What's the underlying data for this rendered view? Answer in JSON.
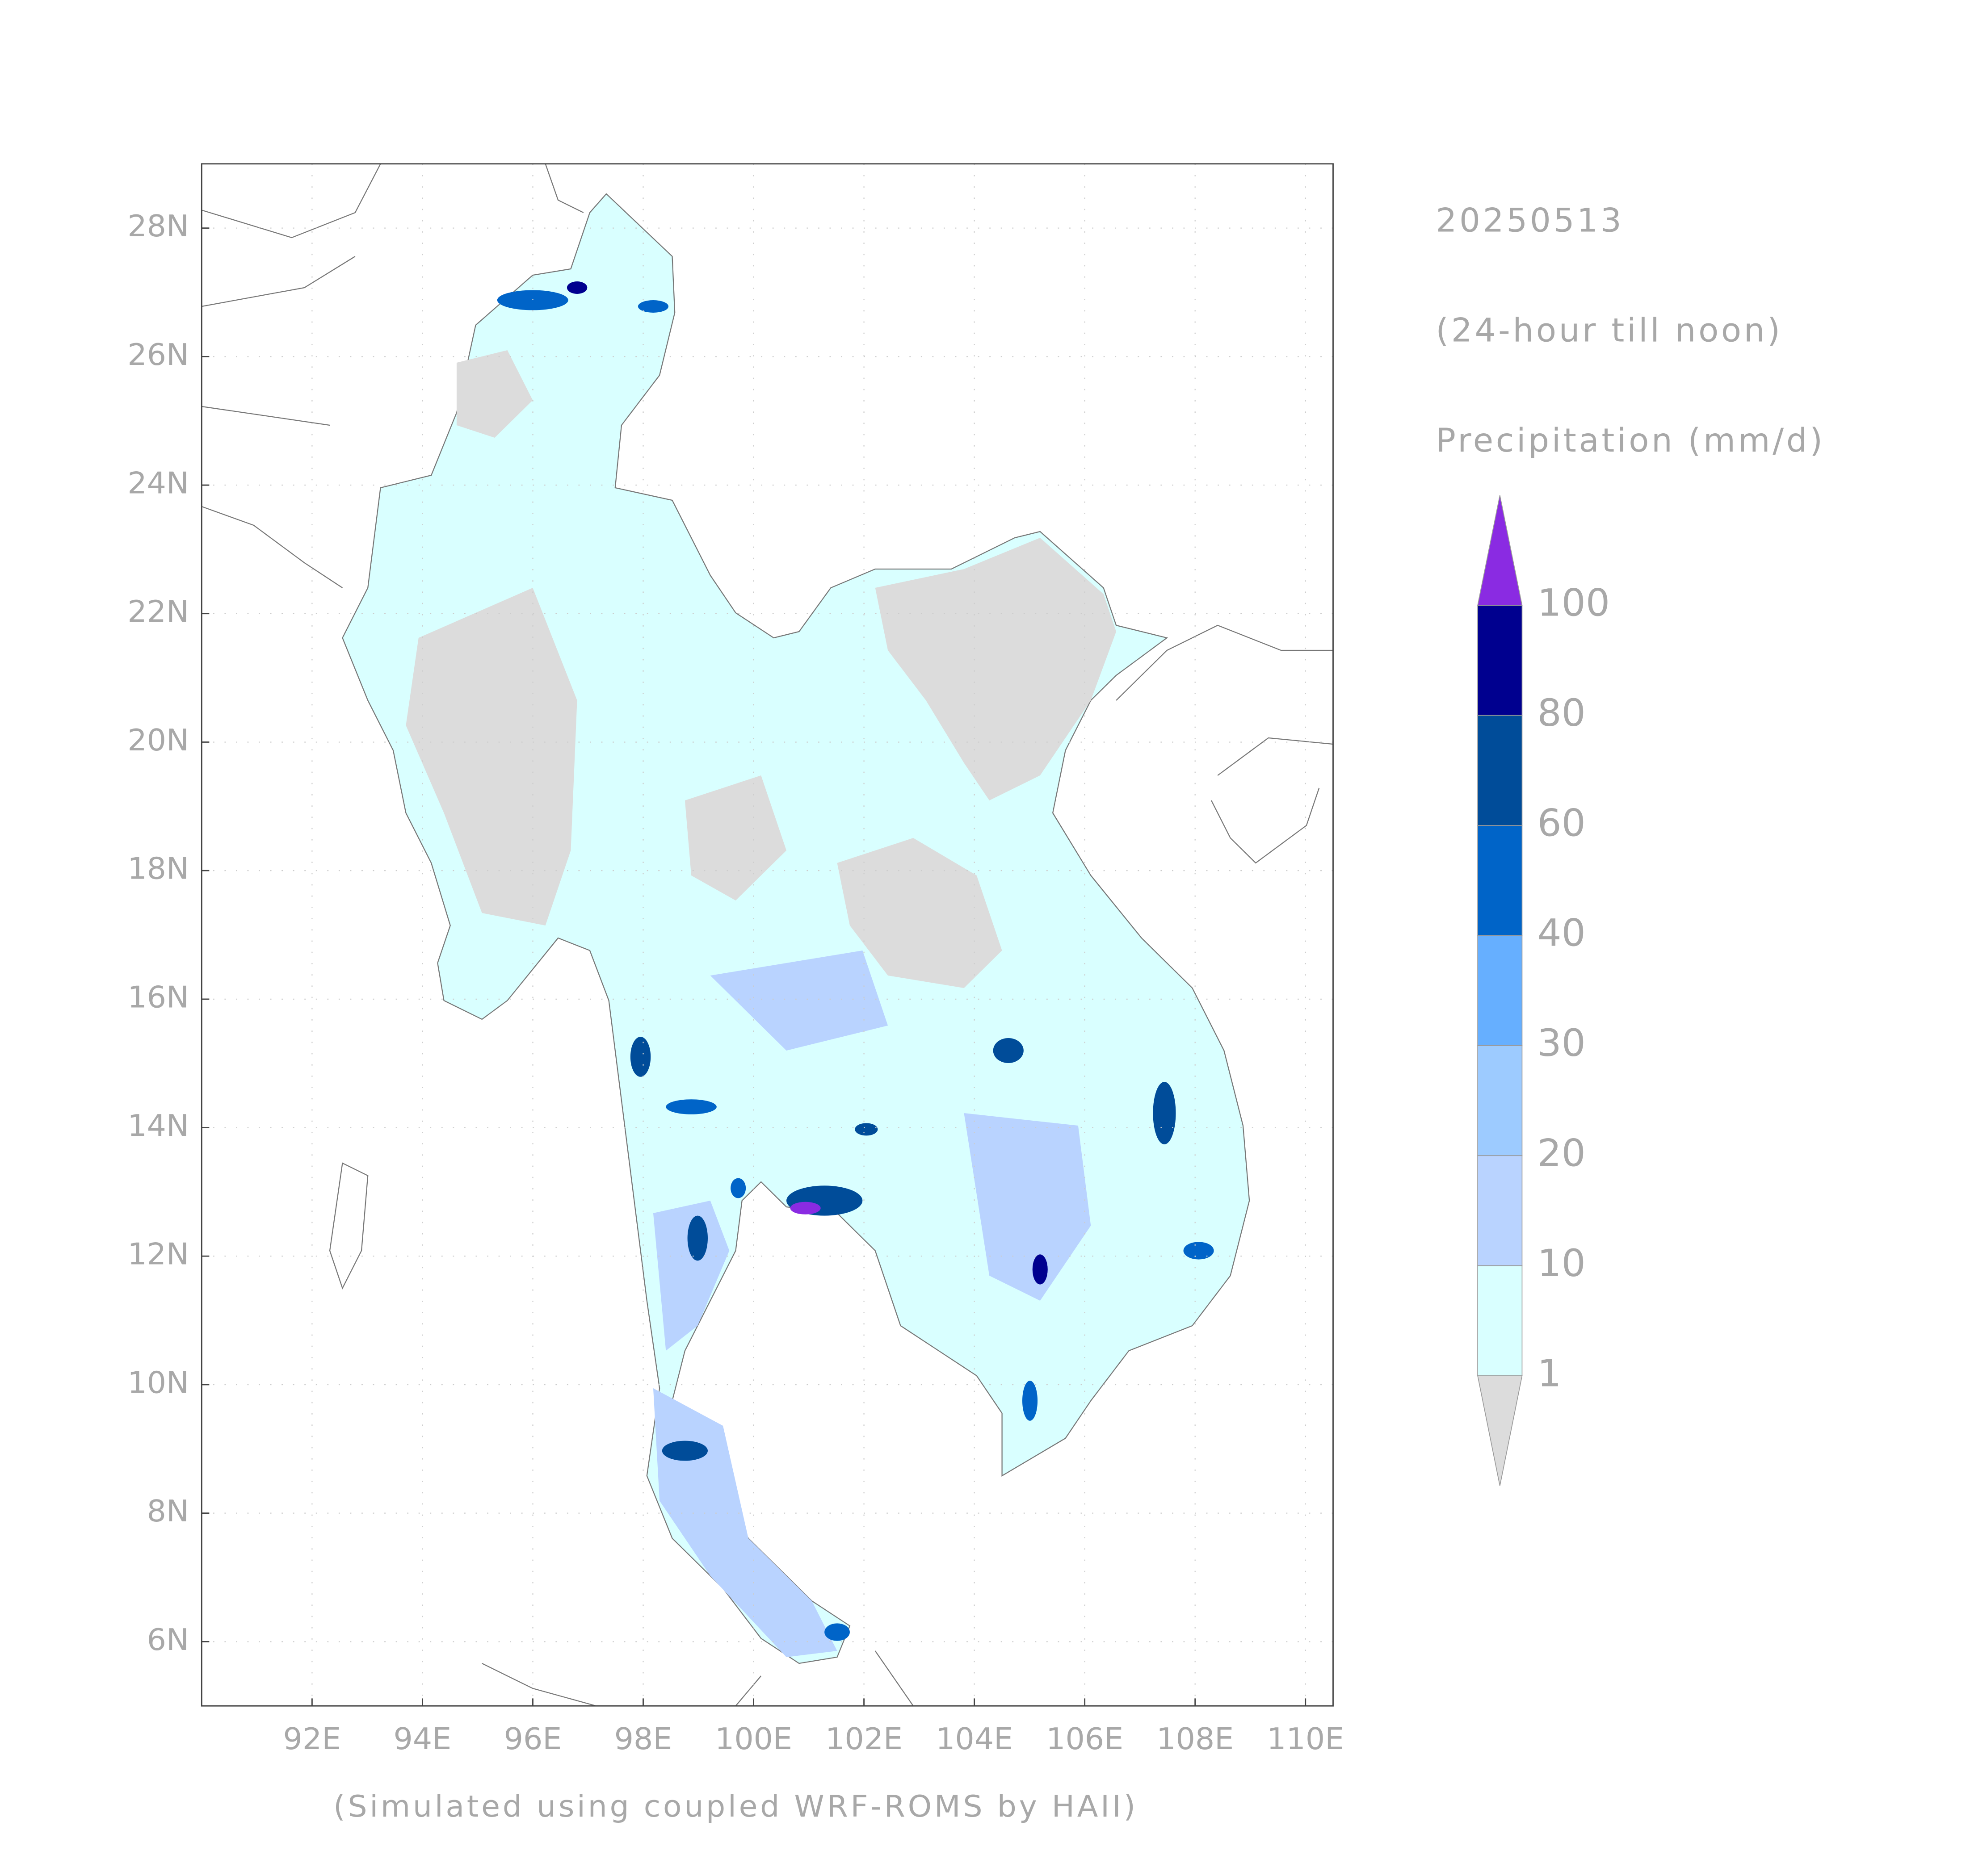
{
  "title": "20250513",
  "subtitle": "(24-hour till noon)",
  "variable": "Precipitation (mm/d)",
  "footer": "(Simulated using coupled WRF-ROMS by HAII)",
  "map": {
    "xlim": [
      90,
      110.5
    ],
    "ylim": [
      5,
      29
    ],
    "grid": true,
    "xticks": [
      {
        "value": 92,
        "label": "92E"
      },
      {
        "value": 94,
        "label": "94E"
      },
      {
        "value": 96,
        "label": "96E"
      },
      {
        "value": 98,
        "label": "98E"
      },
      {
        "value": 100,
        "label": "100E"
      },
      {
        "value": 102,
        "label": "102E"
      },
      {
        "value": 104,
        "label": "104E"
      },
      {
        "value": 106,
        "label": "106E"
      },
      {
        "value": 108,
        "label": "108E"
      },
      {
        "value": 110,
        "label": "110E"
      }
    ],
    "yticks": [
      {
        "value": 6,
        "label": "6N"
      },
      {
        "value": 8,
        "label": "8N"
      },
      {
        "value": 10,
        "label": "10N"
      },
      {
        "value": 12,
        "label": "12N"
      },
      {
        "value": 14,
        "label": "14N"
      },
      {
        "value": 16,
        "label": "16N"
      },
      {
        "value": 18,
        "label": "18N"
      },
      {
        "value": 20,
        "label": "20N"
      },
      {
        "value": 22,
        "label": "22N"
      },
      {
        "value": 24,
        "label": "24N"
      },
      {
        "value": 26,
        "label": "26N"
      },
      {
        "value": 28,
        "label": "28N"
      }
    ]
  },
  "colorbar": {
    "levels": [
      1,
      10,
      20,
      30,
      40,
      60,
      80,
      100
    ],
    "colors": [
      "#dcdcdc",
      "#d9ffff",
      "#b9d3ff",
      "#9dcbff",
      "#66afff",
      "#0064c8",
      "#004c99",
      "#00008f",
      "#8a2be2"
    ]
  }
}
